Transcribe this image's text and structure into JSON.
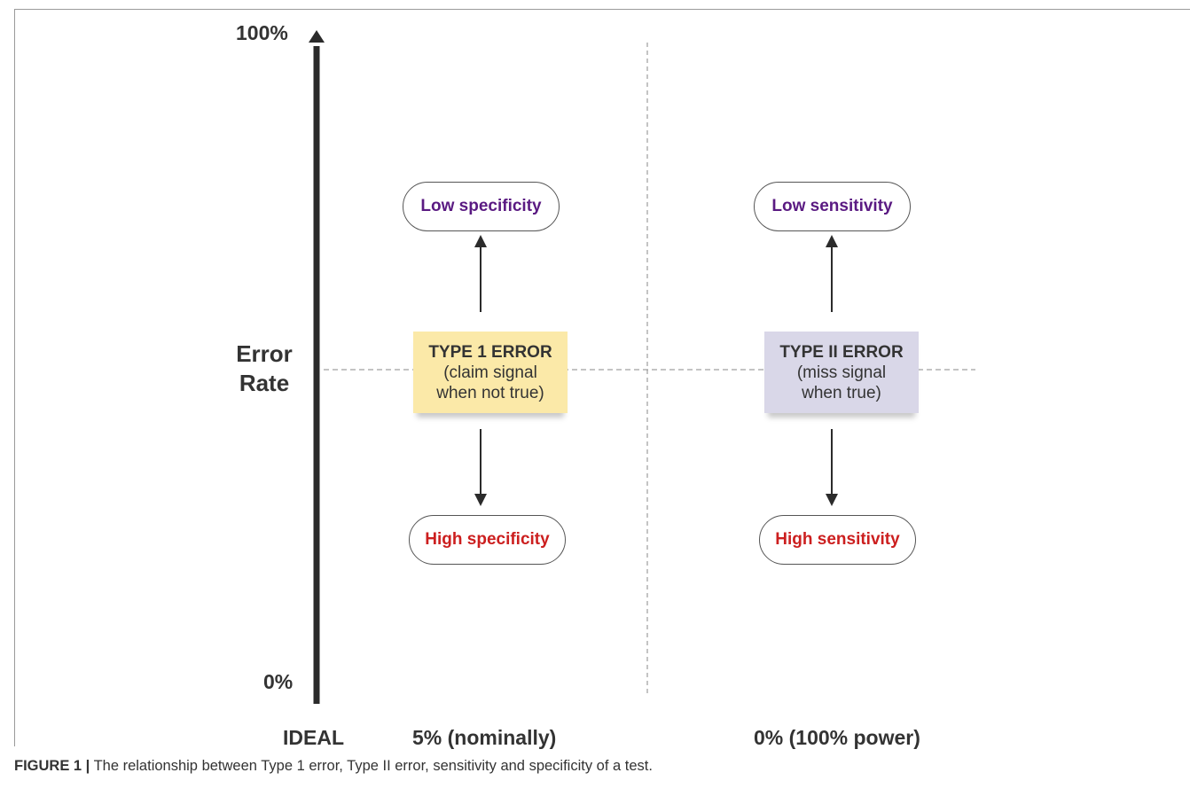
{
  "axis": {
    "top_label": "100%",
    "bottom_label": "0%",
    "title_line1": "Error",
    "title_line2": "Rate"
  },
  "type1": {
    "title": "TYPE 1 ERROR",
    "line1": "(claim signal",
    "line2": "when not true)",
    "low_label": "Low specificity",
    "high_label": "High specificity",
    "box_color": "#fbe9a8"
  },
  "type2": {
    "title": "TYPE II ERROR",
    "line1": "(miss signal",
    "line2": "when true)",
    "low_label": "Low sensitivity",
    "high_label": "High sensitivity",
    "box_color": "#d9d7e8"
  },
  "footer": {
    "ideal": "IDEAL",
    "type1_value": "5% (nominally)",
    "type2_value": "0% (100% power)"
  },
  "caption": {
    "prefix": "FIGURE 1 |",
    "text": " The relationship between Type 1 error, Type II error, sensitivity and specificity of a test."
  },
  "colors": {
    "low_text": "#5a1a82",
    "high_text": "#cc1f1f",
    "axis": "#2b2b2b"
  }
}
